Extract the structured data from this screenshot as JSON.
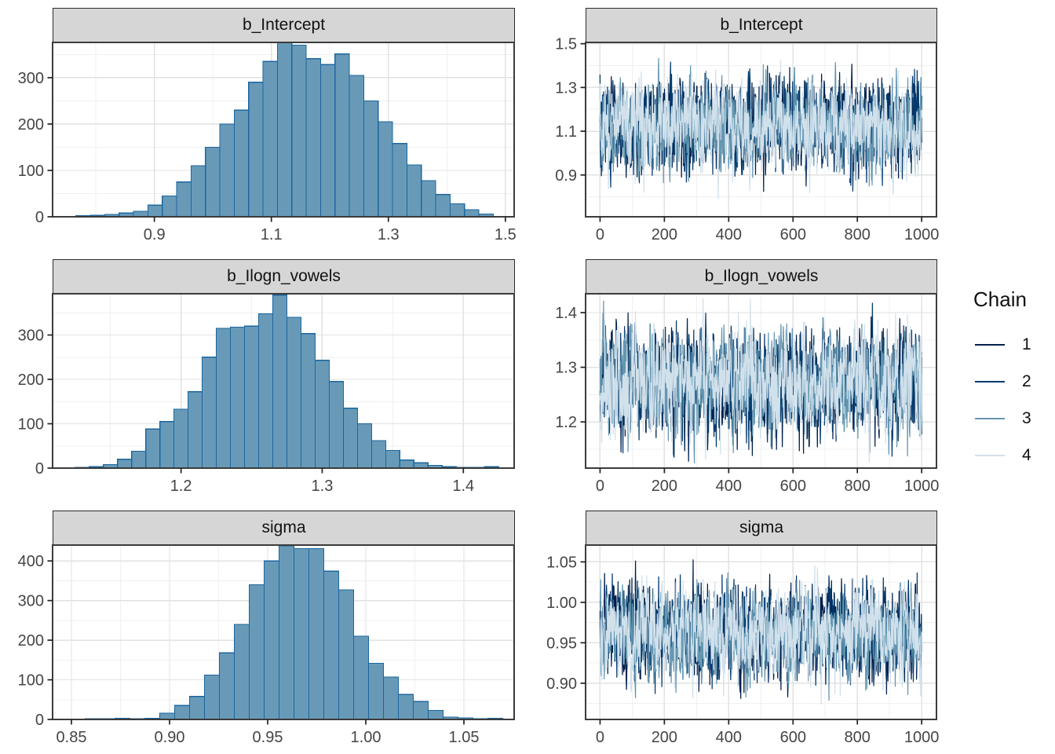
{
  "figure": {
    "background": "#ffffff"
  },
  "legend": {
    "title": "Chain",
    "items": [
      {
        "label": "1",
        "color": "#011f4b"
      },
      {
        "label": "2",
        "color": "#03396c"
      },
      {
        "label": "3",
        "color": "#6497b1"
      },
      {
        "label": "4",
        "color": "#d1e1ec"
      }
    ]
  },
  "style_colors": {
    "hist_fill": "#689ab8",
    "hist_stroke": "#1b669e",
    "strip_fill": "#d6d6d6",
    "strip_border": "#2b2b2b",
    "panel_border": "#3c3c3c",
    "grid_major": "#e2e2e2",
    "grid_minor": "#f0f0f0",
    "axis_tick": "#222222",
    "tick_label": "#454545",
    "panel_background": "#ffffff"
  },
  "chart_data": [
    {
      "type": "histogram",
      "title": "b_Intercept",
      "xlim": [
        0.726,
        1.515
      ],
      "ylim": [
        0,
        376
      ],
      "xticks": [
        0.9,
        1.1,
        1.3,
        1.5
      ],
      "xtick_labels": [
        "0.9",
        "1.1",
        "1.3",
        "1.5"
      ],
      "yticks": [
        0,
        100,
        200,
        300
      ],
      "ytick_labels": [
        "0",
        "100",
        "200",
        "300"
      ],
      "bin_start": 0.766,
      "bin_width": 0.0246,
      "counts": [
        2,
        3,
        5,
        8,
        12,
        25,
        45,
        75,
        110,
        150,
        200,
        230,
        290,
        335,
        375,
        370,
        341,
        328,
        351,
        305,
        250,
        205,
        158,
        112,
        78,
        48,
        28,
        15,
        6
      ]
    },
    {
      "type": "trace",
      "title": "b_Intercept",
      "xlim": [
        -45,
        1046
      ],
      "ylim": [
        0.709,
        1.506
      ],
      "xticks": [
        0,
        200,
        400,
        600,
        800,
        1000
      ],
      "xtick_labels": [
        "0",
        "200",
        "400",
        "600",
        "800",
        "1000"
      ],
      "yticks": [
        0.9,
        1.1,
        1.3,
        1.5
      ],
      "ytick_labels": [
        "0.9",
        "1.1",
        "1.3",
        "1.5"
      ],
      "trace": {
        "n": 1000,
        "x_max": 1000,
        "mean": 1.127,
        "sd": 0.102,
        "clip": [
          0.74,
          1.475
        ],
        "seed": 101,
        "chains": 4
      }
    },
    {
      "type": "histogram",
      "title": "b_Ilogn_vowels",
      "xlim": [
        1.109,
        1.436
      ],
      "ylim": [
        0,
        393
      ],
      "xticks": [
        1.2,
        1.3,
        1.4
      ],
      "xtick_labels": [
        "1.2",
        "1.3",
        "1.4"
      ],
      "yticks": [
        0,
        100,
        200,
        300
      ],
      "ytick_labels": [
        "0",
        "100",
        "200",
        "300"
      ],
      "bin_start": 1.125,
      "bin_width": 0.01,
      "counts": [
        2,
        3,
        8,
        20,
        38,
        88,
        105,
        133,
        172,
        250,
        315,
        318,
        320,
        348,
        390,
        340,
        303,
        243,
        195,
        135,
        100,
        62,
        40,
        18,
        12,
        6,
        3,
        2,
        2,
        3
      ]
    },
    {
      "type": "trace",
      "title": "b_Ilogn_vowels",
      "xlim": [
        -45,
        1046
      ],
      "ylim": [
        1.1155,
        1.4345
      ],
      "xticks": [
        0,
        200,
        400,
        600,
        800,
        1000
      ],
      "xtick_labels": [
        "0",
        "200",
        "400",
        "600",
        "800",
        "1000"
      ],
      "yticks": [
        1.2,
        1.3,
        1.4
      ],
      "ytick_labels": [
        "1.2",
        "1.3",
        "1.4"
      ],
      "trace": {
        "n": 1000,
        "x_max": 1000,
        "mean": 1.272,
        "sd": 0.047,
        "clip": [
          1.125,
          1.425
        ],
        "seed": 202,
        "chains": 4
      }
    },
    {
      "type": "histogram",
      "title": "sigma",
      "xlim": [
        0.8404,
        1.0756
      ],
      "ylim": [
        0,
        440
      ],
      "xticks": [
        0.85,
        0.9,
        0.95,
        1.0,
        1.05
      ],
      "xtick_labels": [
        "0.85",
        "0.90",
        "0.95",
        "1.00",
        "1.05"
      ],
      "yticks": [
        0,
        100,
        200,
        300,
        400
      ],
      "ytick_labels": [
        "0",
        "100",
        "200",
        "300",
        "400"
      ],
      "bin_start": 0.857,
      "bin_width": 0.0076,
      "counts": [
        2,
        2,
        3,
        2,
        3,
        16,
        35,
        58,
        112,
        168,
        240,
        340,
        400,
        438,
        431,
        431,
        374,
        327,
        210,
        142,
        107,
        63,
        45,
        23,
        6,
        4,
        2,
        3
      ]
    },
    {
      "type": "trace",
      "title": "sigma",
      "xlim": [
        -45,
        1046
      ],
      "ylim": [
        0.8552,
        1.0708
      ],
      "xticks": [
        0,
        200,
        400,
        600,
        800,
        1000
      ],
      "xtick_labels": [
        "0",
        "200",
        "400",
        "600",
        "800",
        "1000"
      ],
      "yticks": [
        0.9,
        0.95,
        1.0,
        1.05
      ],
      "ytick_labels": [
        "0.90",
        "0.95",
        "1.00",
        "1.05"
      ],
      "trace": {
        "n": 1000,
        "x_max": 1000,
        "mean": 0.962,
        "sd": 0.028,
        "clip": [
          0.865,
          1.062
        ],
        "seed": 303,
        "chains": 4
      }
    }
  ]
}
